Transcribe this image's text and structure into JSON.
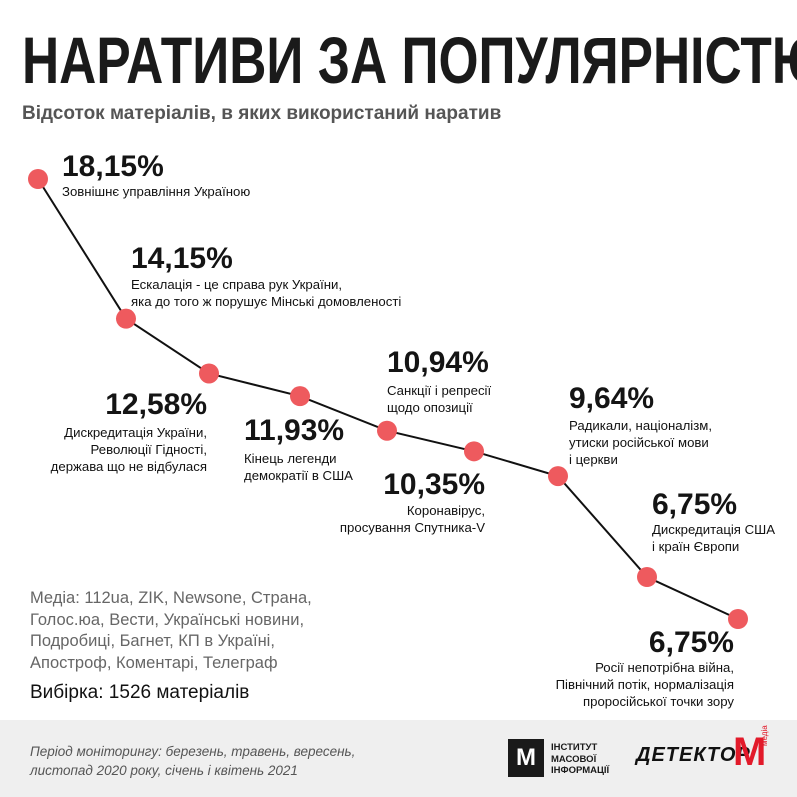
{
  "title": "НАРАТИВИ ЗА ПОПУЛЯРНІСТЮ",
  "subtitle": "Відсоток матеріалів, в яких використаний наратив",
  "colors": {
    "marker": "#ee5a5e",
    "line": "#111111",
    "footer_bg": "#efefef",
    "brand_red": "#e21a2a"
  },
  "chart_data": {
    "type": "line",
    "title": "НАРАТИВИ ЗА ПОПУЛЯРНІСТЮ",
    "ylabel": "Відсоток матеріалів, в яких використаний наратив",
    "points": [
      {
        "value": 18.15,
        "pct": "18,15%",
        "lines": [
          "Зовнішнє управління Україною"
        ]
      },
      {
        "value": 14.15,
        "pct": "14,15%",
        "lines": [
          "Ескалація - це справа рук України,",
          "яка до того ж порушує Мінські домовленості"
        ]
      },
      {
        "value": 12.58,
        "pct": "12,58%",
        "lines": [
          "Дискредитація України,",
          "Революції Гідності,",
          "держава що не відбулася"
        ]
      },
      {
        "value": 11.93,
        "pct": "11,93%",
        "lines": [
          "Кінець легенди",
          "демократії в США"
        ]
      },
      {
        "value": 10.94,
        "pct": "10,94%",
        "lines": [
          "Санкції і репресії",
          "щодо опозиції"
        ]
      },
      {
        "value": 10.35,
        "pct": "10,35%",
        "lines": [
          "Коронавірус,",
          "просування Спутника-V"
        ]
      },
      {
        "value": 9.64,
        "pct": "9,64%",
        "lines": [
          "Радикали, націоналізм,",
          "утиски російської мови",
          "і церкви"
        ]
      },
      {
        "value": 6.75,
        "pct": "6,75%",
        "lines": [
          "Дискредитація США",
          "і країн Європи"
        ]
      },
      {
        "value": 6.75,
        "pct": "6,75%",
        "lines": [
          "Росії непотрібна війна,",
          "Північний потік, нормалізація",
          "проросійської точки зору"
        ]
      }
    ]
  },
  "media": "Медіа: 112ua, ZIK, Newsone, Страна, Голос.юа, Вести, Українські новини, Подробиці, Багнет, КП в Україні, Апостроф, Коментарі, Телеграф",
  "sample": "Вибірка: 1526 матеріалів",
  "period": "Період моніторингу: березень, травень, вересень, листопад 2020 року, січень і квітень 2021",
  "logos": {
    "imi_symbol": "М",
    "imi_text": "ІНСТИТУТ МАСОВОЇ ІНФОРМАЦІЇ",
    "detector": "ДЕТЕКТОР",
    "detector_m": "М",
    "detector_media": "медіа"
  }
}
